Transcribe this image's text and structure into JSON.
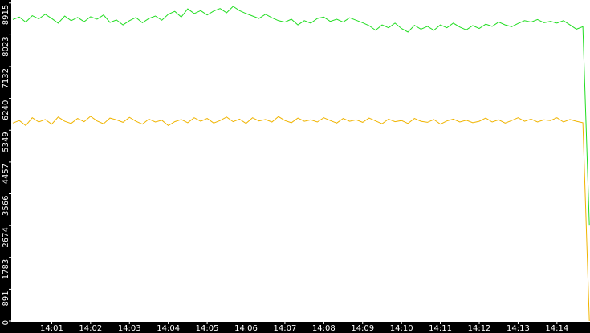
{
  "chart_data": {
    "type": "line",
    "categories": [
      null,
      null,
      null,
      null,
      null,
      null,
      "14:01",
      null,
      null,
      null,
      null,
      null,
      "14:02",
      null,
      null,
      null,
      null,
      null,
      "14:03",
      null,
      null,
      null,
      null,
      null,
      "14:04",
      null,
      null,
      null,
      null,
      null,
      "14:05",
      null,
      null,
      null,
      null,
      null,
      "14:06",
      null,
      null,
      null,
      null,
      null,
      "14:07",
      null,
      null,
      null,
      null,
      null,
      "14:08",
      null,
      null,
      null,
      null,
      null,
      "14:09",
      null,
      null,
      null,
      null,
      null,
      "14:10",
      null,
      null,
      null,
      null,
      null,
      "14:11",
      null,
      null,
      null,
      null,
      null,
      "14:12",
      null,
      null,
      null,
      null,
      null,
      "14:13",
      null,
      null,
      null,
      null,
      null,
      "14:14",
      null,
      null,
      null,
      null,
      null
    ],
    "series": [
      {
        "color": "#22dd22",
        "values": [
          8450,
          8520,
          8380,
          8560,
          8470,
          8600,
          8480,
          8350,
          8550,
          8420,
          8510,
          8390,
          8530,
          8460,
          8580,
          8370,
          8440,
          8300,
          8420,
          8510,
          8360,
          8480,
          8550,
          8430,
          8600,
          8680,
          8520,
          8750,
          8620,
          8700,
          8580,
          8690,
          8760,
          8640,
          8820,
          8700,
          8620,
          8550,
          8480,
          8600,
          8500,
          8420,
          8380,
          8460,
          8300,
          8420,
          8350,
          8480,
          8520,
          8400,
          8460,
          8380,
          8500,
          8430,
          8360,
          8280,
          8150,
          8300,
          8220,
          8350,
          8200,
          8100,
          8290,
          8180,
          8260,
          8150,
          8300,
          8220,
          8350,
          8240,
          8160,
          8280,
          8200,
          8320,
          8260,
          8380,
          8300,
          8250,
          8340,
          8420,
          8380,
          8450,
          8360,
          8400,
          8350,
          8420,
          8300,
          8180,
          8250,
          2674
        ]
      },
      {
        "color": "#f0b400",
        "values": [
          5550,
          5620,
          5480,
          5700,
          5580,
          5650,
          5520,
          5720,
          5600,
          5540,
          5680,
          5590,
          5740,
          5610,
          5530,
          5690,
          5640,
          5570,
          5710,
          5600,
          5520,
          5660,
          5580,
          5630,
          5480,
          5590,
          5650,
          5560,
          5700,
          5600,
          5680,
          5550,
          5620,
          5720,
          5590,
          5660,
          5540,
          5700,
          5610,
          5650,
          5580,
          5730,
          5620,
          5560,
          5690,
          5600,
          5640,
          5580,
          5700,
          5620,
          5550,
          5680,
          5600,
          5640,
          5570,
          5690,
          5610,
          5530,
          5660,
          5590,
          5620,
          5540,
          5680,
          5600,
          5570,
          5650,
          5520,
          5610,
          5660,
          5580,
          5630,
          5560,
          5600,
          5690,
          5580,
          5640,
          5550,
          5620,
          5700,
          5600,
          5660,
          5580,
          5640,
          5620,
          5700,
          5580,
          5650,
          5600,
          5560,
          0
        ]
      }
    ],
    "ylim": [
      0,
      9000
    ],
    "yticks": [
      0,
      891,
      1783,
      2674,
      3566,
      4457,
      5349,
      6240,
      7132,
      8023,
      8915
    ]
  }
}
